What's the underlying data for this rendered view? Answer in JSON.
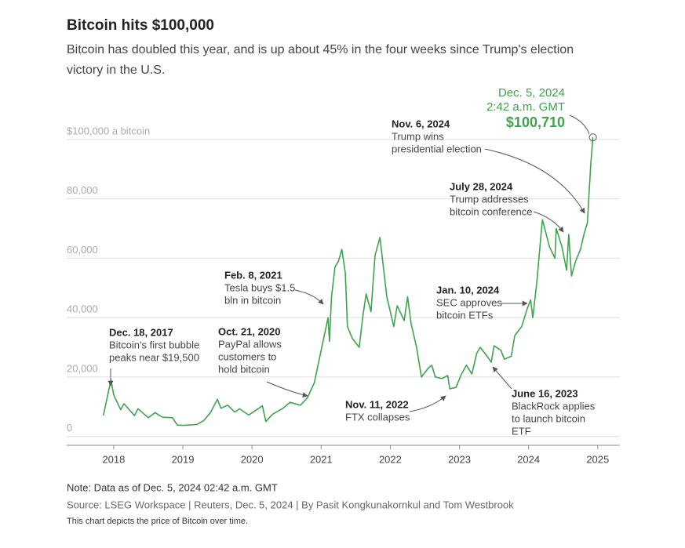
{
  "chart_data": {
    "type": "line",
    "title": "Bitcoin hits $100,000",
    "subtitle_lines": [
      "Bitcoin has doubled this year, and is up about 45% in the four weeks since Trump's election",
      "victory in the U.S."
    ],
    "x": [
      2017.85,
      2017.96,
      2018.0,
      2018.1,
      2018.15,
      2018.3,
      2018.35,
      2018.5,
      2018.6,
      2018.7,
      2018.85,
      2018.92,
      2019.0,
      2019.2,
      2019.3,
      2019.4,
      2019.5,
      2019.55,
      2019.65,
      2019.75,
      2019.82,
      2019.95,
      2020.1,
      2020.15,
      2020.2,
      2020.3,
      2020.45,
      2020.55,
      2020.7,
      2020.8,
      2020.9,
      2021.0,
      2021.1,
      2021.12,
      2021.15,
      2021.2,
      2021.25,
      2021.3,
      2021.35,
      2021.38,
      2021.45,
      2021.55,
      2021.6,
      2021.65,
      2021.72,
      2021.78,
      2021.85,
      2021.9,
      2021.95,
      2022.05,
      2022.1,
      2022.2,
      2022.25,
      2022.3,
      2022.38,
      2022.45,
      2022.55,
      2022.6,
      2022.65,
      2022.75,
      2022.83,
      2022.86,
      2022.95,
      2023.03,
      2023.1,
      2023.18,
      2023.25,
      2023.3,
      2023.4,
      2023.46,
      2023.5,
      2023.6,
      2023.65,
      2023.75,
      2023.8,
      2023.9,
      2023.98,
      2024.03,
      2024.06,
      2024.12,
      2024.18,
      2024.2,
      2024.3,
      2024.38,
      2024.4,
      2024.48,
      2024.55,
      2024.58,
      2024.62,
      2024.68,
      2024.75,
      2024.8,
      2024.85,
      2024.87,
      2024.9,
      2024.93
    ],
    "series": [
      {
        "name": "Bitcoin",
        "color": "#3fa34d",
        "values": [
          7000,
          19000,
          14000,
          9000,
          11000,
          7000,
          9300,
          6300,
          8000,
          6500,
          6300,
          3800,
          3700,
          4000,
          5300,
          8000,
          12500,
          9500,
          10500,
          8200,
          9300,
          7200,
          9500,
          10300,
          5000,
          7500,
          9500,
          11500,
          10500,
          13000,
          18000,
          29000,
          40000,
          32000,
          47000,
          57000,
          59000,
          63000,
          55000,
          37000,
          33000,
          30000,
          40000,
          48000,
          42000,
          61000,
          67000,
          57000,
          47000,
          37000,
          44000,
          39000,
          47000,
          38000,
          30000,
          20000,
          23000,
          24000,
          20000,
          19500,
          20500,
          16000,
          16500,
          21000,
          24000,
          21000,
          28000,
          30000,
          27000,
          25000,
          30500,
          29000,
          26000,
          27000,
          34000,
          37000,
          43000,
          46000,
          40000,
          52000,
          68000,
          73000,
          64000,
          60000,
          70000,
          64000,
          56000,
          68000,
          54000,
          59000,
          63000,
          68000,
          72000,
          80000,
          92000,
          100710
        ]
      }
    ],
    "xlim": [
      2017.32,
      2025.32
    ],
    "xticks": [
      2018,
      2019,
      2020,
      2021,
      2022,
      2023,
      2024,
      2025
    ],
    "ylim": [
      -3000,
      105000
    ],
    "yticks": [
      {
        "value": 0,
        "label": "0"
      },
      {
        "value": 20000,
        "label": "20,000"
      },
      {
        "value": 40000,
        "label": "40,000"
      },
      {
        "value": 60000,
        "label": "60,000"
      },
      {
        "value": 80000,
        "label": "80,000"
      },
      {
        "value": 100000,
        "label": "$100,000 a bitcoin"
      }
    ],
    "grid": true,
    "latest": {
      "date_lines": [
        "Dec. 5, 2024",
        "2:42 a.m. GMT"
      ],
      "x": 2024.93,
      "value": 100710,
      "label": "$100,710"
    },
    "annotations": [
      {
        "date": "Dec. 18, 2017",
        "lines": [
          "Bitcoin's first bubble",
          "peaks near $19,500"
        ]
      },
      {
        "date": "Oct. 21, 2020",
        "lines": [
          "PayPal allows",
          "customers to",
          "hold bitcoin"
        ]
      },
      {
        "date": "Feb. 8, 2021",
        "lines": [
          "Tesla buys $1.5",
          "bln in bitcoin"
        ]
      },
      {
        "date": "Nov. 11, 2022",
        "lines": [
          "FTX collapses"
        ]
      },
      {
        "date": "June 16, 2023",
        "lines": [
          "BlackRock applies",
          "to launch bitcoin",
          "ETF"
        ]
      },
      {
        "date": "Jan. 10, 2024",
        "lines": [
          "SEC approves",
          "bitcoin ETFs"
        ]
      },
      {
        "date": "July 28, 2024",
        "lines": [
          "Trump addresses",
          "bitcoin conference"
        ]
      },
      {
        "date": "Nov. 6, 2024",
        "lines": [
          "Trump wins",
          "presidential election"
        ]
      }
    ],
    "note": "Note: Data as of Dec. 5, 2024 02:42 a.m. GMT",
    "source": "Source: LSEG Workspace | Reuters, Dec. 5, 2024 | By Pasit Kongkunakornkul and Tom Westbrook",
    "description": "This chart depicts the price of Bitcoin over time."
  }
}
